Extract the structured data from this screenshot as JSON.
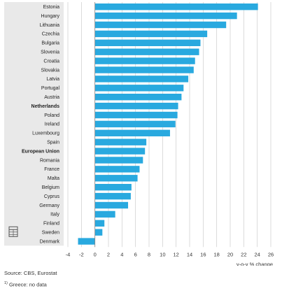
{
  "chart_data": {
    "type": "bar",
    "orientation": "horizontal",
    "title": "",
    "xlabel": "y-o-y % change",
    "ylabel": "",
    "xlim": [
      -4,
      26
    ],
    "xticks": [
      -4,
      -2,
      0,
      2,
      4,
      6,
      8,
      10,
      12,
      14,
      16,
      18,
      20,
      22,
      24,
      26
    ],
    "grid": true,
    "categories": [
      "Estonia",
      "Hungary",
      "Lithuania",
      "Czechia",
      "Bulgaria",
      "Slovenia",
      "Croatia",
      "Slovakia",
      "Latvia",
      "Portugal",
      "Austria",
      "Netherlands",
      "Poland",
      "Ireland",
      "Luxembourg",
      "Spain",
      "European Union",
      "Romania",
      "France",
      "Malta",
      "Belgium",
      "Cyprus",
      "Germany",
      "Italy",
      "Finland",
      "Sweden",
      "Denmark"
    ],
    "bold_categories": [
      "Netherlands",
      "European Union"
    ],
    "values": [
      24.1,
      21.0,
      19.4,
      16.6,
      15.6,
      15.4,
      14.8,
      14.6,
      13.8,
      13.1,
      12.8,
      12.3,
      12.2,
      11.9,
      11.1,
      7.6,
      7.4,
      7.1,
      6.6,
      6.3,
      5.4,
      5.3,
      4.9,
      3.0,
      1.4,
      1.1,
      -2.5
    ],
    "colors": {
      "bar": "#29a9df",
      "label_panel": "#e9e9e9",
      "grid": "#cccccc"
    }
  },
  "footer": {
    "source": "Source: CBS, Eurostat",
    "note_marker": "1)",
    "note_text": " Greece: no data"
  },
  "icons": {
    "corner": "table-icon"
  }
}
